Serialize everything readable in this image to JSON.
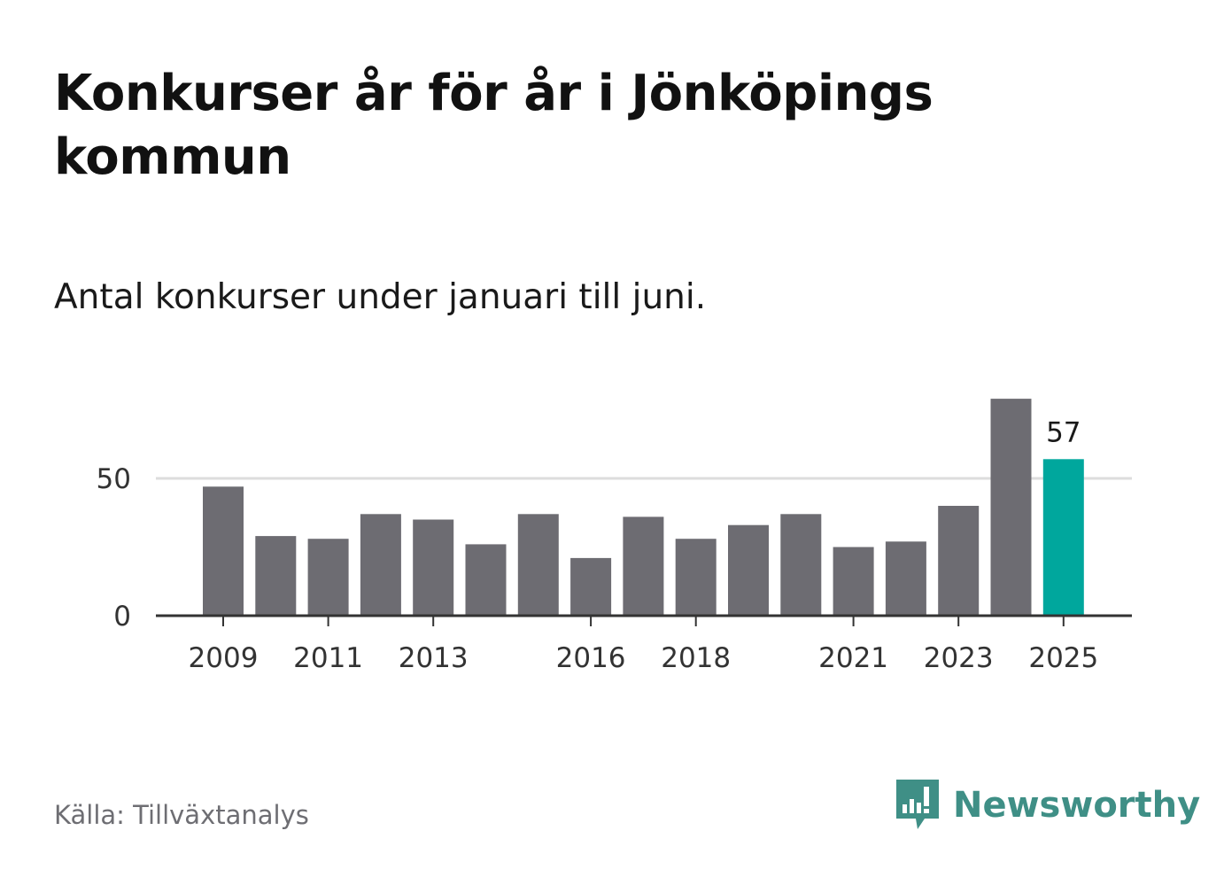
{
  "title": "Konkurser år för år i Jönköpings kommun",
  "subtitle": "Antal konkurser under januari till juni.",
  "source": "Källa: Tillväxtanalys",
  "brand": {
    "name": "Newsworthy",
    "icon": "newsworthy-logo-icon",
    "color": "#3f8f86"
  },
  "colors": {
    "bar": "#6d6c72",
    "highlight": "#00a79d",
    "grid": "#dddddd",
    "axis": "#333333",
    "tick_text": "#333333"
  },
  "chart_data": {
    "type": "bar",
    "title": "Konkurser år för år i Jönköpings kommun",
    "subtitle": "Antal konkurser under januari till juni.",
    "xlabel": "",
    "ylabel": "",
    "categories": [
      "2009",
      "2010",
      "2011",
      "2012",
      "2013",
      "2014",
      "2015",
      "2016",
      "2017",
      "2018",
      "2019",
      "2020",
      "2021",
      "2022",
      "2023",
      "2024",
      "2025"
    ],
    "values": [
      47,
      29,
      28,
      37,
      35,
      26,
      37,
      21,
      36,
      28,
      33,
      37,
      25,
      27,
      40,
      79,
      57
    ],
    "highlight_index": 16,
    "highlight_label": "57",
    "x_tick_labels": [
      "2009",
      "2011",
      "2013",
      "2016",
      "2018",
      "2021",
      "2023",
      "2025"
    ],
    "y_ticks": [
      0,
      50
    ],
    "ylim": [
      0,
      80
    ],
    "grid": true,
    "legend": false
  }
}
